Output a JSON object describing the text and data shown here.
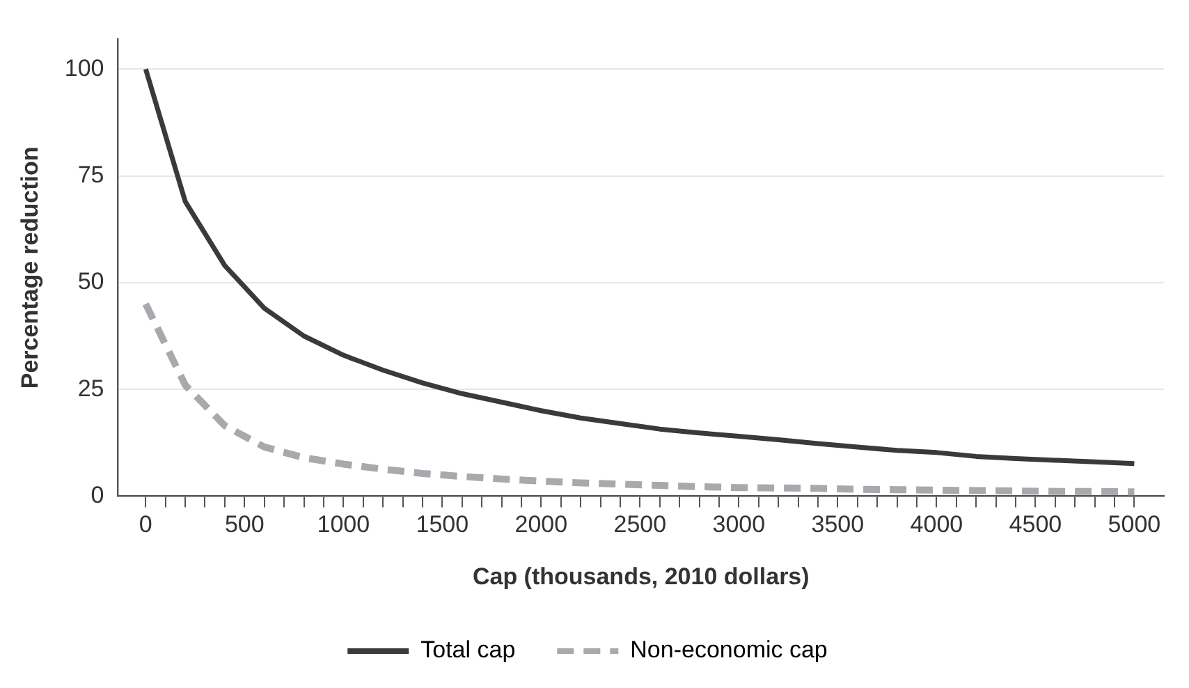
{
  "chart_data": {
    "type": "line",
    "xlabel": "Cap (thousands, 2010 dollars)",
    "ylabel": "Percentage reduction",
    "x": [
      0,
      200,
      400,
      600,
      800,
      1000,
      1200,
      1400,
      1600,
      1800,
      2000,
      2200,
      2400,
      2600,
      2800,
      3000,
      3200,
      3400,
      3600,
      3800,
      4000,
      4200,
      4400,
      4600,
      4800,
      5000
    ],
    "series": [
      {
        "name": "Total cap",
        "color": "#3a3a3c",
        "line_style": "solid",
        "values": [
          100,
          69,
          54,
          44,
          37.5,
          33,
          29.5,
          26.5,
          24,
          22,
          20,
          18.3,
          17,
          15.7,
          14.8,
          14,
          13.2,
          12.3,
          11.5,
          10.7,
          10.2,
          9.3,
          8.8,
          8.4,
          8,
          7.6
        ]
      },
      {
        "name": "Non-economic cap",
        "color": "#a7a9ac",
        "line_style": "dashed",
        "values": [
          45,
          26,
          16.5,
          11.5,
          9,
          7.5,
          6.3,
          5.3,
          4.6,
          4,
          3.5,
          3.1,
          2.8,
          2.5,
          2.2,
          2,
          1.9,
          1.8,
          1.6,
          1.5,
          1.4,
          1.3,
          1.2,
          1.1,
          1.1,
          1
        ]
      }
    ],
    "xlim": [
      -140,
      5150
    ],
    "ylim": [
      0,
      107
    ],
    "xticks": [
      0,
      {
        "value": 100,
        "label": null
      },
      {
        "value": 200,
        "label": null
      },
      {
        "value": 300,
        "label": null
      },
      {
        "value": 400,
        "label": null
      },
      500,
      {
        "value": 600,
        "label": null
      },
      {
        "value": 700,
        "label": null
      },
      {
        "value": 800,
        "label": null
      },
      {
        "value": 900,
        "label": null
      },
      1000,
      {
        "value": 1100,
        "label": null
      },
      {
        "value": 1200,
        "label": null
      },
      {
        "value": 1300,
        "label": null
      },
      {
        "value": 1400,
        "label": null
      },
      1500,
      {
        "value": 1600,
        "label": null
      },
      {
        "value": 1700,
        "label": null
      },
      {
        "value": 1800,
        "label": null
      },
      {
        "value": 1900,
        "label": null
      },
      2000,
      {
        "value": 2100,
        "label": null
      },
      {
        "value": 2200,
        "label": null
      },
      {
        "value": 2300,
        "label": null
      },
      {
        "value": 2400,
        "label": null
      },
      2500,
      {
        "value": 2600,
        "label": null
      },
      {
        "value": 2700,
        "label": null
      },
      {
        "value": 2800,
        "label": null
      },
      {
        "value": 2900,
        "label": null
      },
      3000,
      {
        "value": 3100,
        "label": null
      },
      {
        "value": 3200,
        "label": null
      },
      {
        "value": 3300,
        "label": null
      },
      {
        "value": 3400,
        "label": null
      },
      3500,
      {
        "value": 3600,
        "label": null
      },
      {
        "value": 3700,
        "label": null
      },
      {
        "value": 3800,
        "label": null
      },
      {
        "value": 3900,
        "label": null
      },
      4000,
      {
        "value": 4100,
        "label": null
      },
      {
        "value": 4200,
        "label": null
      },
      {
        "value": 4300,
        "label": null
      },
      {
        "value": 4400,
        "label": null
      },
      4500,
      {
        "value": 4600,
        "label": null
      },
      {
        "value": 4700,
        "label": null
      },
      {
        "value": 4800,
        "label": null
      },
      {
        "value": 4900,
        "label": null
      },
      5000
    ],
    "yticks": [
      0,
      25,
      50,
      75,
      100
    ],
    "grid": "y",
    "legend": "bottom",
    "marker": "none"
  }
}
